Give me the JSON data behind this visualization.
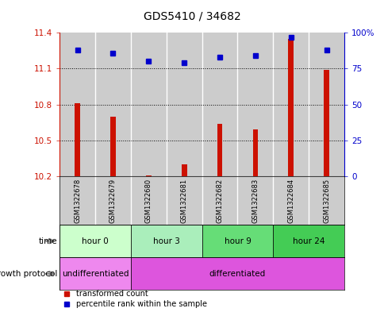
{
  "title": "GDS5410 / 34682",
  "samples": [
    "GSM1322678",
    "GSM1322679",
    "GSM1322680",
    "GSM1322681",
    "GSM1322682",
    "GSM1322683",
    "GSM1322684",
    "GSM1322685"
  ],
  "transformed_counts": [
    10.81,
    10.7,
    10.205,
    10.3,
    10.64,
    10.59,
    11.35,
    11.09
  ],
  "percentile_ranks": [
    88,
    86,
    80,
    79,
    83,
    84,
    97,
    88
  ],
  "ylim_left": [
    10.2,
    11.4
  ],
  "ylim_right": [
    0,
    100
  ],
  "yticks_left": [
    10.2,
    10.5,
    10.8,
    11.1,
    11.4
  ],
  "yticks_right": [
    0,
    25,
    50,
    75,
    100
  ],
  "ytick_labels_left": [
    "10.2",
    "10.5",
    "10.8",
    "11.1",
    "11.4"
  ],
  "ytick_labels_right": [
    "0",
    "25",
    "50",
    "75",
    "100%"
  ],
  "bar_color": "#cc1100",
  "dot_color": "#0000cc",
  "bar_bottom": 10.2,
  "time_groups": [
    {
      "label": "hour 0",
      "start": 0,
      "end": 1,
      "color": "#ccffcc"
    },
    {
      "label": "hour 3",
      "start": 2,
      "end": 3,
      "color": "#aaeebb"
    },
    {
      "label": "hour 9",
      "start": 4,
      "end": 5,
      "color": "#66dd77"
    },
    {
      "label": "hour 24",
      "start": 6,
      "end": 7,
      "color": "#44cc55"
    }
  ],
  "growth_groups": [
    {
      "label": "undifferentiated",
      "start": 0,
      "end": 1,
      "color": "#ee88ee"
    },
    {
      "label": "differentiated",
      "start": 2,
      "end": 7,
      "color": "#dd55dd"
    }
  ],
  "legend_bar_label": "transformed count",
  "legend_dot_label": "percentile rank within the sample",
  "sample_col_even": "#cccccc",
  "sample_col_odd": "#bbbbbb",
  "bar_width": 0.15
}
